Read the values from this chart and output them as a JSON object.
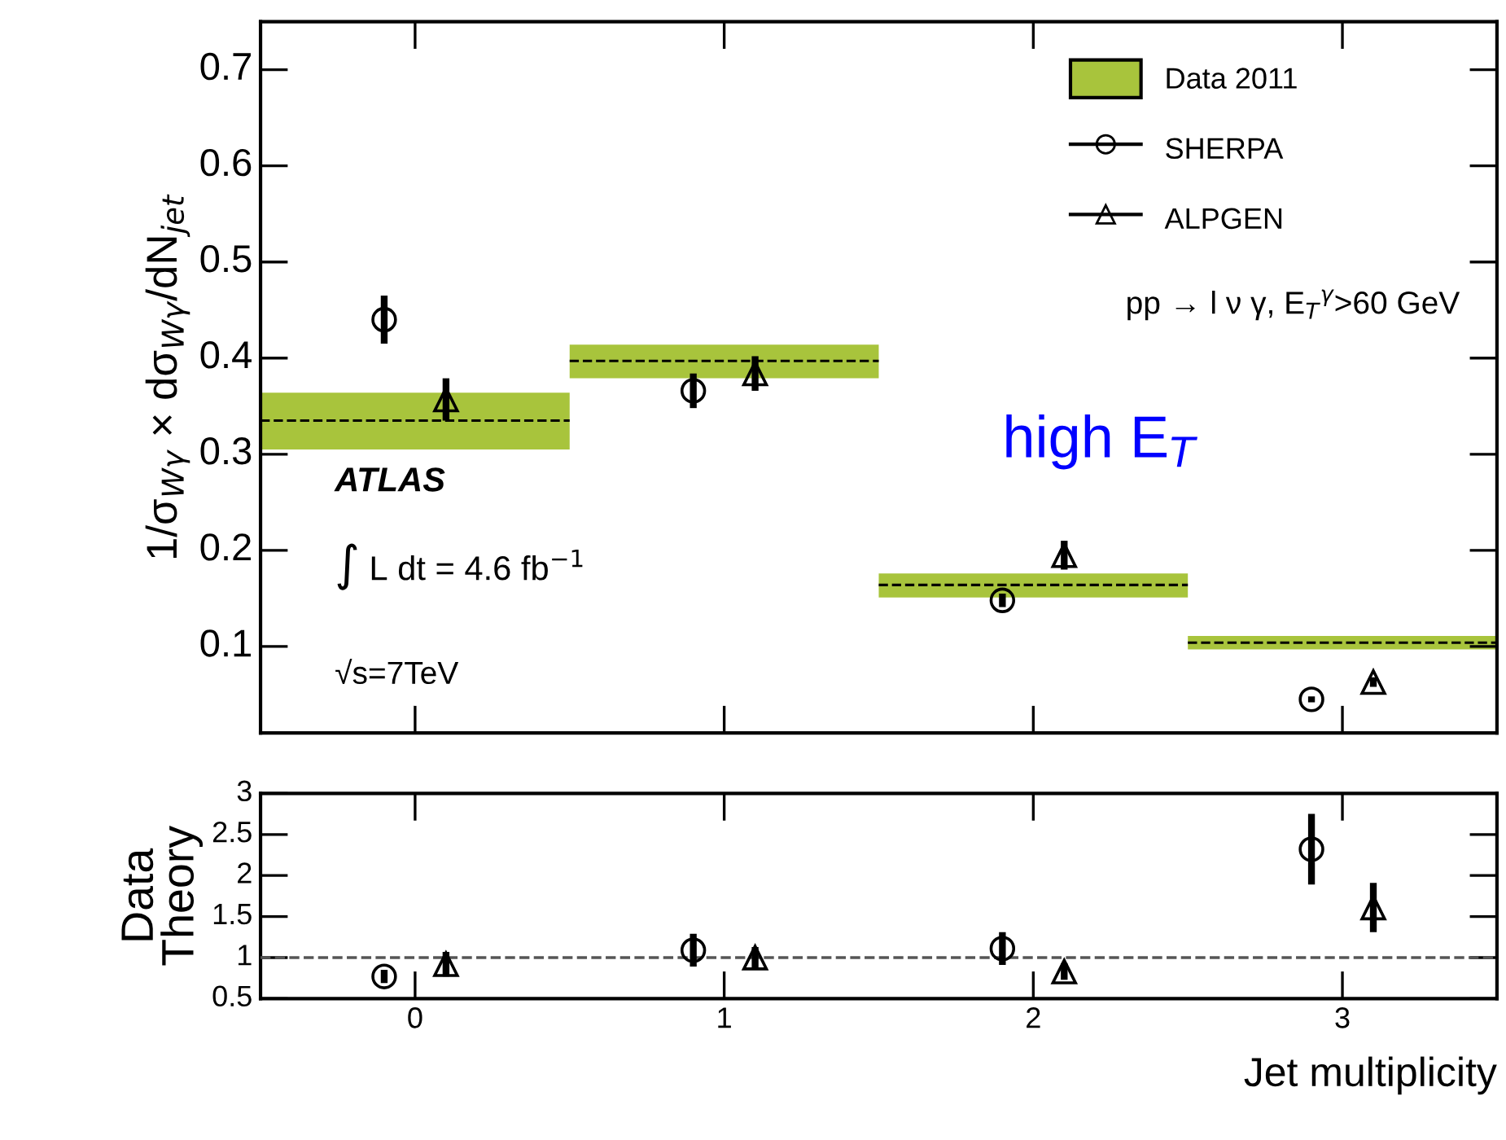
{
  "chart_data": [
    {
      "type": "scatter",
      "ylabel": "1/σ$_{Wγ}$ × dσ$_{Wγ}$/dN$_{jet}$",
      "xlim": [
        -0.5,
        3.5
      ],
      "xticks": [
        0,
        1,
        2,
        3
      ],
      "ylim": [
        0.01,
        0.75
      ],
      "yticks": [
        0.1,
        0.2,
        0.3,
        0.4,
        0.5,
        0.6,
        0.7
      ],
      "tick_labels": "y",
      "legend": "top right",
      "grid": false,
      "series": [
        {
          "name": "Data 2011",
          "type": "bar",
          "color": "#a8c43c",
          "x": [
            0,
            1,
            2,
            3
          ],
          "base": [
            0.305,
            0.379,
            0.151,
            0.097
          ],
          "values": [
            0.059,
            0.035,
            0.025,
            0.014
          ]
        },
        {
          "type": "step",
          "color": "#000000",
          "line_style": "dashed",
          "x": [
            -0.5,
            0.5,
            1.5,
            2.5,
            3.5
          ],
          "values": [
            0.335,
            0.397,
            0.164,
            0.104,
            0.104
          ]
        },
        {
          "name": "SHERPA",
          "color": "#000000",
          "marker": "circle",
          "x": [
            -0.1,
            0.9,
            1.9,
            2.9
          ],
          "values": [
            0.44,
            0.366,
            0.148,
            0.045
          ],
          "errors": [
            0.025,
            0.018,
            0.007,
            0.003
          ]
        },
        {
          "name": "ALPGEN",
          "color": "#000000",
          "marker": "triangle",
          "x": [
            0.1,
            1.1,
            2.1,
            3.1
          ],
          "values": [
            0.357,
            0.384,
            0.195,
            0.063
          ],
          "errors": [
            0.022,
            0.018,
            0.015,
            0.005
          ]
        }
      ],
      "annotations": [
        "ATLAS",
        "∫ L dt = 4.6 fb$^{−1}$",
        "√s=7TeV",
        "pp → l ν γ, E$_{T}$$^{γ}$>60 GeV",
        "high E$_{T}$"
      ]
    },
    {
      "type": "scatter",
      "ylabel": "Data\nTheory",
      "xlabel": "Jet multiplicity",
      "xlim": [
        -0.5,
        3.5
      ],
      "xticks": [
        0,
        1,
        2,
        3
      ],
      "ylim": [
        0.5,
        3
      ],
      "yticks": [
        0.5,
        1,
        1.5,
        2,
        2.5,
        3
      ],
      "grid": false,
      "series": [
        {
          "color": "#000000",
          "marker": "circle",
          "x": [
            -0.1,
            0.9,
            1.9,
            2.9
          ],
          "values": [
            0.77,
            1.09,
            1.11,
            2.32
          ],
          "errors": [
            0.08,
            0.2,
            0.2,
            0.43
          ]
        },
        {
          "color": "#000000",
          "marker": "triangle",
          "x": [
            0.1,
            1.1,
            2.1,
            3.1
          ],
          "values": [
            0.92,
            1.0,
            0.83,
            1.61
          ],
          "errors": [
            0.15,
            0.13,
            0.1,
            0.3
          ]
        }
      ],
      "ref_lines": [
        {
          "axis": "y",
          "value": 1,
          "color": "#555555",
          "line_style": "dashed"
        }
      ]
    }
  ]
}
